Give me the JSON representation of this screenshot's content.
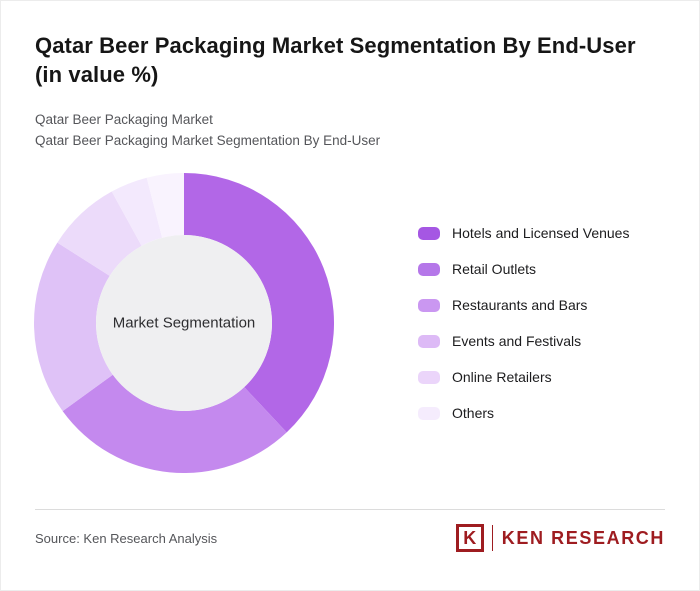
{
  "title": "Qatar Beer Packaging Market Segmentation By End-User (in value %)",
  "subtitle_lines": [
    "Qatar Beer Packaging Market",
    "Qatar Beer Packaging Market Segmentation By End-User"
  ],
  "chart_data": {
    "type": "pie",
    "variant": "donut",
    "title": "Qatar Beer Packaging Market Segmentation By End-User (in value %)",
    "center_label": "Market Segmentation",
    "categories": [
      "Hotels and Licensed Venues",
      "Retail Outlets",
      "Restaurants and Bars",
      "Events and Festivals",
      "Online Retailers",
      "Others"
    ],
    "values": [
      38,
      27,
      19,
      8,
      4,
      4
    ],
    "unit": "value %",
    "colors": [
      "#b267e7",
      "#c489ee",
      "#dfc2f7",
      "#ecdbfa",
      "#f3e9fd",
      "#f9f3fe"
    ],
    "legend_colors": [
      "#a557e3",
      "#b577e9",
      "#ca97f1",
      "#ddbaf6",
      "#ebd5fa",
      "#f5ecfd"
    ],
    "center_circle_color": "#efeff1",
    "legend_position": "right",
    "start_angle_deg": 0,
    "direction": "clockwise"
  },
  "footer": {
    "source": "Source: Ken Research Analysis",
    "logo_mark": "K",
    "logo_text": "KEN RESEARCH",
    "logo_color": "#9e1c20"
  }
}
